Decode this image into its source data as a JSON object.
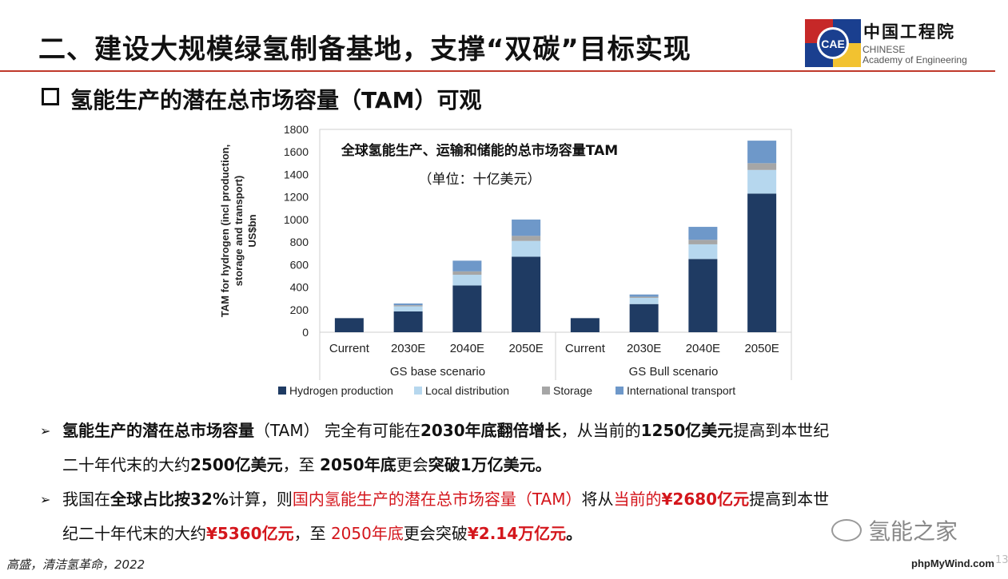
{
  "slide": {
    "title": "二、建设大规模绿氢制备基地，支撑“双碳”目标实现",
    "subtitle": "氢能生产的潜在总市场容量（TAM）可观",
    "logo": {
      "zh": "中国工程院",
      "en_line1": "CHINESE",
      "en_line2": "Academy of Engineering",
      "badge": "CAE"
    },
    "colors": {
      "title_rule": "#c0392b",
      "emphasis_red": "#d4161c"
    }
  },
  "chart_data": {
    "type": "bar",
    "stacked": true,
    "title": "全球氢能生产、运输和储能的总市场容量TAM",
    "subtitle": "（单位：十亿美元）",
    "ylabel": "TAM for hydrogen (incl production, storage and transport) US$bn",
    "ylim": [
      0,
      1800
    ],
    "yticks": [
      0,
      200,
      400,
      600,
      800,
      1000,
      1200,
      1400,
      1600,
      1800
    ],
    "categories": [
      "Current",
      "2030E",
      "2040E",
      "2050E",
      "Current",
      "2030E",
      "2040E",
      "2050E"
    ],
    "groups": [
      {
        "name": "GS base scenario",
        "span": [
          0,
          3
        ]
      },
      {
        "name": "GS Bull scenario",
        "span": [
          4,
          7
        ]
      }
    ],
    "legend_position": "bottom",
    "series": [
      {
        "name": "Hydrogen production",
        "color": "#1f3b63",
        "values": [
          125,
          185,
          415,
          670,
          125,
          250,
          650,
          1230
        ]
      },
      {
        "name": "Local distribution",
        "color": "#b6d7ee",
        "values": [
          0,
          45,
          95,
          140,
          0,
          55,
          130,
          210
        ]
      },
      {
        "name": "Storage",
        "color": "#a6a6a6",
        "values": [
          0,
          10,
          30,
          45,
          0,
          10,
          40,
          60
        ]
      },
      {
        "name": "International transport",
        "color": "#6e98c9",
        "values": [
          0,
          15,
          95,
          145,
          0,
          20,
          115,
          200
        ]
      }
    ]
  },
  "bullets": [
    {
      "line1": [
        {
          "t": "氢能生产的潜在总市场容量",
          "s": "b"
        },
        {
          "t": "（TAM） 完全有可能在",
          "s": ""
        },
        {
          "t": "2030年底翻倍增长",
          "s": "b"
        },
        {
          "t": "，从当前的",
          "s": ""
        },
        {
          "t": "1250亿美元",
          "s": "b"
        },
        {
          "t": "提高到本世纪",
          "s": ""
        }
      ],
      "line2": [
        {
          "t": "二十年代末的大约",
          "s": ""
        },
        {
          "t": "2500亿美元",
          "s": "b"
        },
        {
          "t": "，至 ",
          "s": ""
        },
        {
          "t": "2050年底",
          "s": "b"
        },
        {
          "t": "更会",
          "s": ""
        },
        {
          "t": "突破1万亿美元。",
          "s": "b"
        }
      ]
    },
    {
      "line1": [
        {
          "t": "我国在",
          "s": ""
        },
        {
          "t": "全球占比按32%",
          "s": "b"
        },
        {
          "t": "计算，则",
          "s": ""
        },
        {
          "t": "国内氢能生产的潜在总市场容量（TAM）",
          "s": "red"
        },
        {
          "t": "将从",
          "s": ""
        },
        {
          "t": "当前的",
          "s": "red"
        },
        {
          "t": "¥2680亿元",
          "s": "red b"
        },
        {
          "t": "提高到本世",
          "s": ""
        }
      ],
      "line2": [
        {
          "t": "纪二十年代末的大约",
          "s": ""
        },
        {
          "t": "¥5360亿元",
          "s": "red b"
        },
        {
          "t": "，至 ",
          "s": ""
        },
        {
          "t": "2050年底",
          "s": "red"
        },
        {
          "t": "更会突破",
          "s": ""
        },
        {
          "t": "¥2.14万亿元",
          "s": "red b"
        },
        {
          "t": "。",
          "s": "b"
        }
      ]
    }
  ],
  "footer": {
    "source": "高盛，清洁氢革命，2022",
    "site": "phpMyWind.com",
    "page": "13",
    "watermark": "氢能之家"
  }
}
